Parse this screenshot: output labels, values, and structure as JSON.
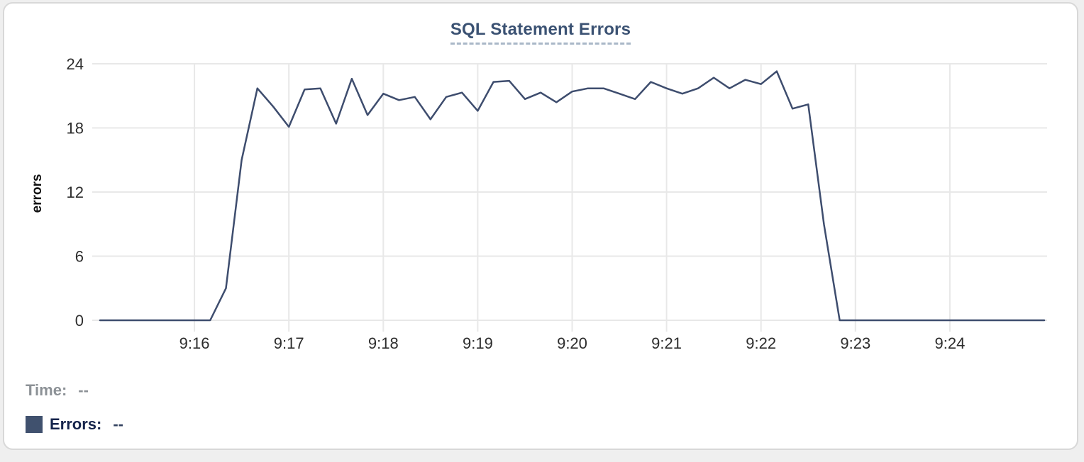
{
  "chart": {
    "title": "SQL Statement Errors",
    "y_axis_label": "errors"
  },
  "legend": {
    "time_label": "Time:",
    "time_value": "--",
    "errors_label": "Errors:",
    "errors_value": "--",
    "swatch_color": "#40516e"
  },
  "colors": {
    "line": "#3e4d6e",
    "grid": "#e8e8e8",
    "title": "#3b5273",
    "title_underline": "#a9b7c7",
    "tick_text": "#2d2d2d",
    "time_gray": "#8c9196",
    "errors_navy": "#16254c"
  },
  "chart_data": {
    "type": "line",
    "title": "SQL Statement Errors",
    "xlabel": "",
    "ylabel": "errors",
    "ylim": [
      0,
      24
    ],
    "y_ticks": [
      0,
      6,
      12,
      18,
      24
    ],
    "x_ticks": [
      "9:16",
      "9:17",
      "9:18",
      "9:19",
      "9:20",
      "9:21",
      "9:22",
      "9:23",
      "9:24"
    ],
    "x_start": "9:15:00",
    "x_end": "9:25:00",
    "interval_seconds": 10,
    "grid": true,
    "legend_position": "bottom-left",
    "series": [
      {
        "name": "Errors",
        "color": "#3e4d6e",
        "values": [
          0,
          0,
          0,
          0,
          0,
          0,
          0,
          0,
          3,
          15,
          21.7,
          20,
          18.1,
          21.6,
          21.7,
          18.4,
          22.6,
          19.2,
          21.2,
          20.6,
          20.9,
          18.8,
          20.9,
          21.3,
          19.6,
          22.3,
          22.4,
          20.7,
          21.3,
          20.4,
          21.4,
          21.7,
          21.7,
          21.2,
          20.7,
          22.3,
          21.7,
          21.2,
          21.7,
          22.7,
          21.7,
          22.5,
          22.1,
          23.3,
          19.8,
          20.2,
          9,
          0,
          0,
          0,
          0,
          0,
          0,
          0,
          0,
          0,
          0,
          0,
          0,
          0,
          0
        ]
      }
    ]
  }
}
